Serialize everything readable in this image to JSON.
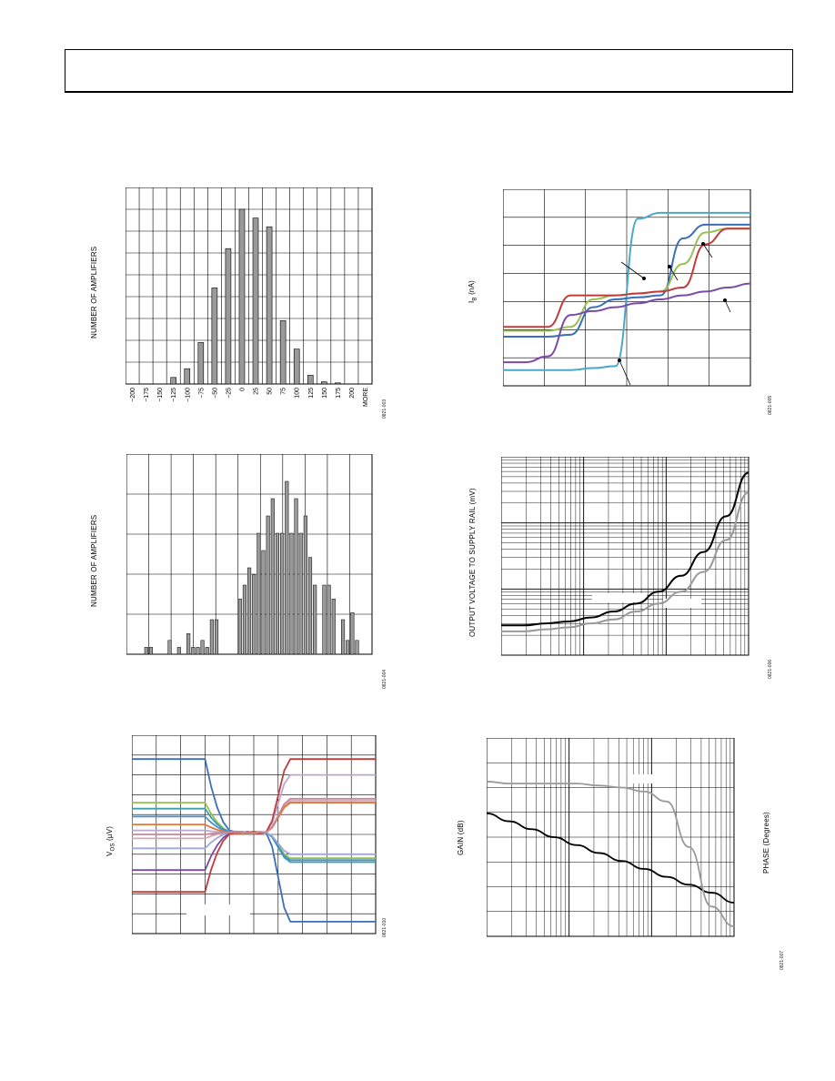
{
  "figures": {
    "fig1": {
      "ylabel": "NUMBER OF AMPLIFIERS",
      "code": "0821-003"
    },
    "fig2": {
      "ylabel_main": "I",
      "ylabel_sub": "B",
      "ylabel_unit": " (nA)",
      "code": "0821-005"
    },
    "fig3": {
      "ylabel": "NUMBER OF AMPLIFIERS",
      "code": "0821-004"
    },
    "fig4": {
      "ylabel": "OUTPUT VOLTAGE TO SUPPLY RAIL (mV)",
      "code": "0821-006"
    },
    "fig5": {
      "ylabel_main": "V",
      "ylabel_sub": "OS",
      "ylabel_unit": " (µV)",
      "code": "0821-010"
    },
    "fig6": {
      "ylabel": "GAIN (dB)",
      "ylabel_right": "PHASE (Degrees)",
      "code": "0821-007"
    }
  },
  "chart_data": [
    {
      "type": "bar",
      "categories": [
        "−200",
        "−175",
        "−150",
        "−125",
        "−100",
        "−75",
        "−50",
        "−25",
        "0",
        "25",
        "50",
        "75",
        "100",
        "125",
        "150",
        "175",
        "200",
        "MORE"
      ],
      "values": [
        0,
        0,
        0,
        3,
        7,
        19,
        44,
        62,
        80,
        76,
        72,
        29,
        16,
        4,
        1,
        0.5,
        0,
        0
      ],
      "ylim": [
        0,
        90
      ]
    },
    {
      "type": "bar",
      "values": [
        2,
        2,
        0,
        0,
        0,
        4,
        0,
        2,
        0,
        6,
        2,
        2,
        4,
        2,
        10,
        10,
        0,
        0,
        0,
        0,
        16,
        20,
        25,
        23,
        35,
        30,
        40,
        45,
        35,
        35,
        50,
        35,
        45,
        35,
        40,
        28,
        20,
        0,
        20,
        20,
        16,
        0,
        10,
        4,
        12,
        4,
        0
      ],
      "ylim": [
        0,
        50
      ]
    },
    {
      "type": "line",
      "series": [
        {
          "color": "#4aa8c8",
          "values": [
            0.08,
            0.08,
            0.08,
            0.08,
            0.09,
            0.1,
            0.85,
            0.88,
            0.88,
            0.88,
            0.88,
            0.88
          ]
        },
        {
          "color": "#3a6fb8",
          "values": [
            0.25,
            0.25,
            0.25,
            0.26,
            0.4,
            0.44,
            0.45,
            0.46,
            0.75,
            0.82,
            0.82,
            0.82
          ]
        },
        {
          "color": "#98c050",
          "values": [
            0.28,
            0.28,
            0.28,
            0.3,
            0.44,
            0.46,
            0.47,
            0.48,
            0.62,
            0.78,
            0.8,
            0.8
          ]
        },
        {
          "color": "#c03c3c",
          "values": [
            0.3,
            0.3,
            0.3,
            0.46,
            0.46,
            0.46,
            0.47,
            0.48,
            0.5,
            0.72,
            0.8,
            0.8
          ]
        },
        {
          "color": "#7a4aa8",
          "values": [
            0.12,
            0.12,
            0.15,
            0.36,
            0.38,
            0.4,
            0.42,
            0.44,
            0.46,
            0.48,
            0.5,
            0.52
          ]
        }
      ]
    },
    {
      "type": "line",
      "series": [
        {
          "color": "#000000",
          "values": [
            0.15,
            0.15,
            0.16,
            0.17,
            0.19,
            0.22,
            0.26,
            0.32,
            0.4,
            0.52,
            0.7,
            0.92
          ]
        },
        {
          "color": "#999999",
          "values": [
            0.12,
            0.12,
            0.13,
            0.14,
            0.16,
            0.18,
            0.22,
            0.26,
            0.32,
            0.42,
            0.58,
            0.82
          ]
        }
      ]
    },
    {
      "type": "line",
      "series": [
        {
          "color": "#3a6fb8",
          "start": 0.88,
          "end": 0.06
        },
        {
          "color": "#98c050",
          "start": 0.66,
          "end": 0.38
        },
        {
          "color": "#3aa0b0",
          "start": 0.63,
          "end": 0.36
        },
        {
          "color": "#4a90c8",
          "start": 0.59,
          "end": 0.37
        },
        {
          "color": "#b8a8d0",
          "start": 0.52,
          "end": 0.8
        },
        {
          "color": "#d8a8b8",
          "start": 0.48,
          "end": 0.67
        },
        {
          "color": "#9fa8d8",
          "start": 0.43,
          "end": 0.4
        },
        {
          "color": "#7a4aa8",
          "start": 0.32,
          "end": 0.66
        },
        {
          "color": "#c03c3c",
          "start": 0.21,
          "end": 0.88
        },
        {
          "color": "#e07838",
          "start": 0.55,
          "end": 0.66
        },
        {
          "color": "#c88898",
          "start": 0.5,
          "end": 0.68
        }
      ]
    },
    {
      "type": "line",
      "series": [
        {
          "name": "",
          "color": "#000000",
          "values": [
            0.62,
            0.58,
            0.54,
            0.5,
            0.46,
            0.42,
            0.38,
            0.34,
            0.3,
            0.26,
            0.22,
            0.17
          ]
        },
        {
          "name": "",
          "color": "#999999",
          "values": [
            0.78,
            0.77,
            0.77,
            0.77,
            0.77,
            0.76,
            0.75,
            0.73,
            0.68,
            0.45,
            0.15,
            0.05
          ]
        }
      ]
    }
  ]
}
